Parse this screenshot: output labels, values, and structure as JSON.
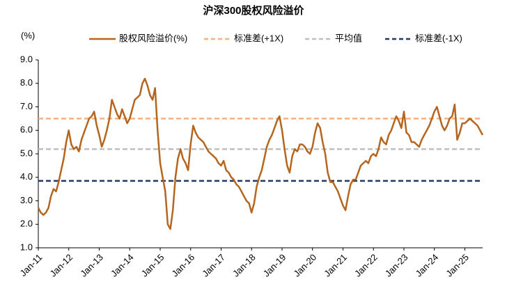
{
  "chart_data": {
    "type": "line",
    "title": "沪深300股权风险溢价",
    "y_unit_label": "(%)",
    "categories": [
      "Jan-11",
      null,
      null,
      null,
      null,
      null,
      null,
      null,
      null,
      null,
      null,
      null,
      "Jan-12",
      null,
      null,
      null,
      null,
      null,
      null,
      null,
      null,
      null,
      null,
      null,
      "Jan-13",
      null,
      null,
      null,
      null,
      null,
      null,
      null,
      null,
      null,
      null,
      null,
      "Jan-14",
      null,
      null,
      null,
      null,
      null,
      null,
      null,
      null,
      null,
      null,
      null,
      "Jan-15",
      null,
      null,
      null,
      null,
      null,
      null,
      null,
      null,
      null,
      null,
      null,
      "Jan-16",
      null,
      null,
      null,
      null,
      null,
      null,
      null,
      null,
      null,
      null,
      null,
      "Jan-17",
      null,
      null,
      null,
      null,
      null,
      null,
      null,
      null,
      null,
      null,
      null,
      "Jan-18",
      null,
      null,
      null,
      null,
      null,
      null,
      null,
      null,
      null,
      null,
      null,
      "Jan-19",
      null,
      null,
      null,
      null,
      null,
      null,
      null,
      null,
      null,
      null,
      null,
      "Jan-20",
      null,
      null,
      null,
      null,
      null,
      null,
      null,
      null,
      null,
      null,
      null,
      "Jan-21",
      null,
      null,
      null,
      null,
      null,
      null,
      null,
      null,
      null,
      null,
      null,
      "Jan-22",
      null,
      null,
      null,
      null,
      null,
      null,
      null,
      null,
      null,
      null,
      null,
      "Jan-23",
      null,
      null,
      null,
      null,
      null,
      null,
      null,
      null,
      null,
      null,
      null,
      "Jan-24",
      null,
      null,
      null,
      null,
      null,
      null,
      null,
      null,
      null,
      null,
      null,
      "Jan-25",
      null,
      null,
      null,
      null,
      null,
      null,
      null
    ],
    "series": [
      {
        "name": "股权风险溢价(%)",
        "color": "#b5651d",
        "values": [
          2.7,
          2.5,
          2.4,
          2.5,
          2.7,
          3.2,
          3.5,
          3.4,
          3.8,
          4.3,
          4.8,
          5.5,
          6.0,
          5.4,
          5.2,
          5.3,
          5.1,
          5.6,
          5.9,
          6.2,
          6.5,
          6.6,
          6.8,
          6.2,
          5.8,
          5.3,
          5.6,
          6.0,
          6.5,
          7.3,
          7.0,
          6.7,
          6.5,
          6.9,
          6.6,
          6.3,
          6.5,
          6.9,
          7.3,
          7.4,
          7.5,
          8.0,
          8.2,
          7.9,
          7.5,
          7.3,
          7.8,
          6.0,
          4.6,
          4.0,
          3.4,
          2.0,
          1.8,
          2.6,
          4.0,
          4.8,
          5.2,
          4.8,
          4.6,
          4.3,
          5.4,
          6.2,
          5.9,
          5.7,
          5.6,
          5.5,
          5.3,
          5.1,
          5.0,
          4.9,
          4.8,
          4.6,
          4.5,
          4.7,
          4.3,
          4.2,
          4.0,
          3.9,
          3.7,
          3.6,
          3.4,
          3.2,
          3.0,
          2.9,
          2.5,
          2.9,
          3.6,
          4.0,
          4.3,
          4.8,
          5.3,
          5.6,
          5.8,
          6.1,
          6.4,
          6.6,
          6.0,
          5.2,
          4.5,
          4.2,
          4.9,
          5.2,
          5.1,
          5.4,
          5.4,
          5.3,
          5.1,
          5.0,
          5.3,
          5.9,
          6.3,
          6.1,
          5.5,
          5.0,
          4.2,
          3.8,
          3.8,
          3.6,
          3.4,
          3.1,
          2.8,
          2.6,
          3.2,
          3.7,
          3.9,
          3.9,
          4.2,
          4.5,
          4.6,
          4.7,
          4.6,
          4.9,
          5.0,
          4.9,
          5.2,
          5.7,
          5.5,
          5.4,
          5.8,
          6.0,
          6.3,
          6.6,
          6.4,
          6.1,
          6.8,
          5.9,
          5.8,
          5.5,
          5.5,
          5.4,
          5.3,
          5.6,
          5.8,
          6.0,
          6.2,
          6.5,
          6.8,
          7.0,
          6.6,
          6.2,
          6.0,
          6.2,
          6.5,
          6.6,
          7.1,
          5.6,
          5.9,
          6.3,
          6.3,
          6.4,
          6.5,
          6.4,
          6.3,
          6.2,
          6.0,
          5.8
        ]
      }
    ],
    "reference_lines": [
      {
        "name": "标准差(+1X)",
        "color": "#f4b183",
        "value": 6.5
      },
      {
        "name": "平均值",
        "color": "#bfbfbf",
        "value": 5.2
      },
      {
        "name": "标准差(-1X)",
        "color": "#1f3864",
        "value": 3.85
      }
    ],
    "ylim": [
      1,
      9
    ],
    "yticks": [
      {
        "value": 1,
        "label": "1.0"
      },
      {
        "value": 2,
        "label": "2.0"
      },
      {
        "value": 3,
        "label": "3.0"
      },
      {
        "value": 4,
        "label": "4.0"
      },
      {
        "value": 5,
        "label": "5.0"
      },
      {
        "value": 6,
        "label": "6.0"
      },
      {
        "value": 7,
        "label": "7.0"
      },
      {
        "value": 8,
        "label": "8.0"
      },
      {
        "value": 9,
        "label": "9.0"
      }
    ],
    "legend": "top"
  }
}
